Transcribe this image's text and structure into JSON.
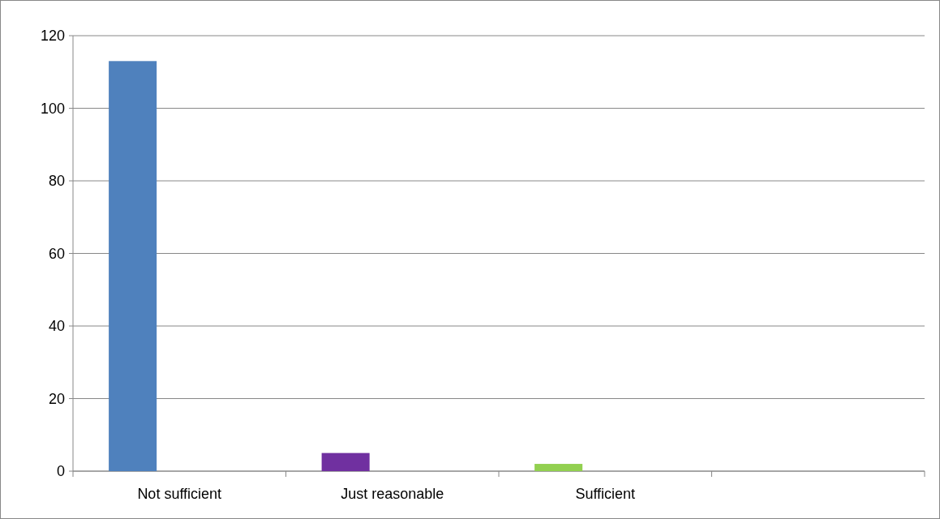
{
  "chart_data": {
    "type": "bar",
    "categories": [
      "Not sufficient",
      "Just reasonable",
      "Sufficient",
      null
    ],
    "values": [
      113,
      5,
      2,
      null
    ],
    "colors": [
      "#4f81bd",
      "#7030a0",
      "#92d050",
      null
    ],
    "ylim": [
      0,
      120
    ],
    "yticks": [
      0,
      20,
      40,
      60,
      80,
      100,
      120
    ],
    "grid": "y"
  }
}
